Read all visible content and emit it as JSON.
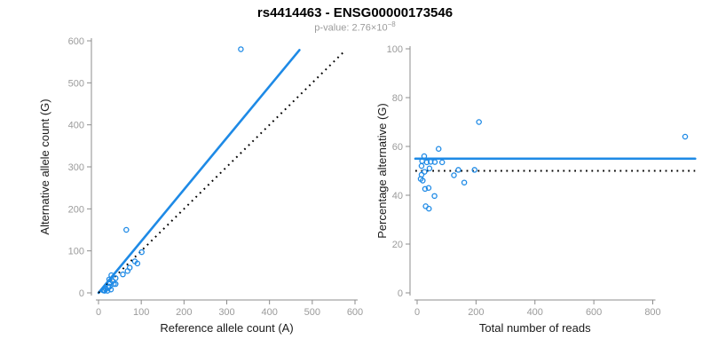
{
  "header": {
    "title": "rs4414463 - ENSG00000173546",
    "pvalue_prefix": "p-value: 2.76×10",
    "pvalue_exponent": "−8"
  },
  "colors": {
    "accent_blue": "#1e8ae6",
    "dotted_black": "#000000",
    "axis_line": "#8c8c8c",
    "tick_label": "#9b9b9b",
    "axis_title": "#1a1a1a",
    "background": "#ffffff"
  },
  "chart_data": [
    {
      "type": "scatter",
      "title": "",
      "xlabel": "Reference allele count (A)",
      "ylabel": "Alternative allele count (G)",
      "xlim": [
        0,
        600
      ],
      "ylim": [
        0,
        600
      ],
      "xticks": [
        0,
        100,
        200,
        300,
        400,
        500,
        600
      ],
      "yticks": [
        0,
        100,
        200,
        300,
        400,
        500,
        600
      ],
      "grid": false,
      "legend": "none",
      "points": [
        [
          333,
          580
        ],
        [
          65,
          150
        ],
        [
          101,
          97
        ],
        [
          85,
          75
        ],
        [
          91,
          70
        ],
        [
          73,
          60
        ],
        [
          68,
          52
        ],
        [
          57,
          44
        ],
        [
          40,
          35
        ],
        [
          30,
          42
        ],
        [
          25,
          32
        ],
        [
          36,
          21
        ],
        [
          40,
          21
        ],
        [
          27,
          23
        ],
        [
          23,
          13
        ],
        [
          17,
          9
        ],
        [
          12,
          7
        ],
        [
          29,
          8
        ],
        [
          14,
          5
        ],
        [
          21,
          5
        ],
        [
          16,
          11
        ],
        [
          11,
          6
        ],
        [
          26,
          15
        ],
        [
          33,
          28
        ]
      ],
      "lines": [
        {
          "name": "fit-line",
          "style": "solid",
          "color_key": "accent_blue",
          "x1": 0,
          "y1": 0,
          "x2": 470,
          "y2": 578
        },
        {
          "name": "identity-line",
          "style": "dotted",
          "color_key": "dotted_black",
          "x1": 0,
          "y1": 0,
          "x2": 575,
          "y2": 575
        }
      ]
    },
    {
      "type": "scatter",
      "title": "",
      "xlabel": "Total number of reads",
      "ylabel": "Percentage alternative (G)",
      "xlim": [
        0,
        910
      ],
      "ylim": [
        0,
        100
      ],
      "xticks": [
        0,
        200,
        400,
        600,
        800
      ],
      "yticks": [
        0,
        20,
        40,
        60,
        80,
        100
      ],
      "grid": false,
      "legend": "none",
      "points": [
        [
          210,
          70
        ],
        [
          910,
          64
        ],
        [
          73,
          59
        ],
        [
          24,
          56
        ],
        [
          17,
          54
        ],
        [
          33,
          53.5
        ],
        [
          46,
          53.7
        ],
        [
          60,
          53.6
        ],
        [
          85,
          53.5
        ],
        [
          15,
          52
        ],
        [
          42,
          51
        ],
        [
          140,
          50.4
        ],
        [
          195,
          50.4
        ],
        [
          25,
          49.6
        ],
        [
          15,
          48.4
        ],
        [
          125,
          48.2
        ],
        [
          12,
          46.7
        ],
        [
          19,
          46
        ],
        [
          160,
          45.2
        ],
        [
          27,
          42.6
        ],
        [
          39,
          43
        ],
        [
          59,
          39.7
        ],
        [
          29,
          35.5
        ],
        [
          40,
          34.5
        ]
      ],
      "lines": [
        {
          "name": "fit-line",
          "style": "solid",
          "color_key": "accent_blue",
          "x1": -6,
          "y1": 55,
          "x2": 944,
          "y2": 55
        },
        {
          "name": "identity-line",
          "style": "dotted",
          "color_key": "dotted_black",
          "x1": -6,
          "y1": 50,
          "x2": 944,
          "y2": 50
        }
      ]
    }
  ]
}
